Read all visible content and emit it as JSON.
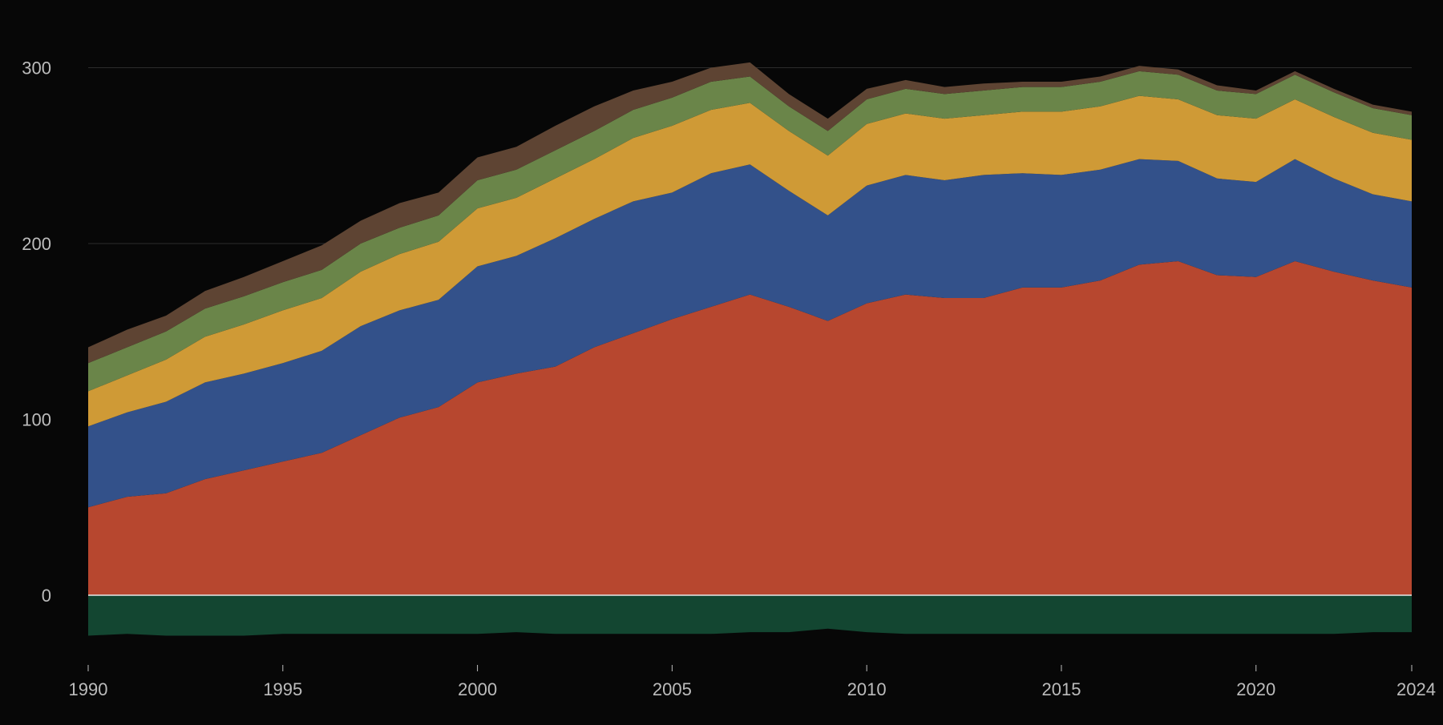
{
  "chart_data": {
    "type": "area",
    "stacked": true,
    "x": [
      1990,
      1991,
      1992,
      1993,
      1994,
      1995,
      1996,
      1997,
      1998,
      1999,
      2000,
      2001,
      2002,
      2003,
      2004,
      2005,
      2006,
      2007,
      2008,
      2009,
      2010,
      2011,
      2012,
      2013,
      2014,
      2015,
      2016,
      2017,
      2018,
      2019,
      2020,
      2021,
      2022,
      2023,
      2024
    ],
    "x_ticks": [
      "1990",
      "1995",
      "2000",
      "2005",
      "2010",
      "2015",
      "2020",
      "2024"
    ],
    "y_ticks": [
      "0",
      "100",
      "200",
      "300"
    ],
    "xlim": [
      1990,
      2024
    ],
    "ylim": [
      -25,
      310
    ],
    "grid": true,
    "legend": "none",
    "series": [
      {
        "color": "#b7472f",
        "values": [
          50,
          56,
          58,
          66,
          71,
          76,
          81,
          91,
          101,
          107,
          121,
          126,
          130,
          141,
          149,
          157,
          164,
          171,
          164,
          156,
          166,
          171,
          169,
          169,
          175,
          175,
          179,
          188,
          190,
          182,
          181,
          190,
          184,
          179,
          175
        ]
      },
      {
        "color": "#33518a",
        "values": [
          46,
          48,
          52,
          55,
          55,
          56,
          58,
          62,
          61,
          61,
          66,
          67,
          73,
          73,
          75,
          72,
          76,
          74,
          66,
          60,
          67,
          68,
          67,
          70,
          65,
          64,
          63,
          60,
          57,
          55,
          54,
          58,
          53,
          49,
          49
        ]
      },
      {
        "color": "#cf9a36",
        "values": [
          20,
          21,
          24,
          26,
          28,
          30,
          30,
          31,
          32,
          33,
          33,
          33,
          34,
          34,
          36,
          38,
          36,
          35,
          34,
          34,
          35,
          35,
          35,
          34,
          35,
          36,
          36,
          36,
          35,
          36,
          36,
          34,
          35,
          35,
          35
        ]
      },
      {
        "color": "#6a8549",
        "values": [
          16,
          16,
          16,
          16,
          16,
          16,
          16,
          16,
          15,
          15,
          16,
          16,
          16,
          16,
          16,
          16,
          16,
          15,
          14,
          14,
          14,
          14,
          14,
          14,
          14,
          14,
          14,
          14,
          14,
          14,
          14,
          14,
          14,
          14,
          14
        ]
      },
      {
        "color": "#5e4433",
        "values": [
          9,
          10,
          9,
          10,
          11,
          12,
          14,
          13,
          14,
          13,
          13,
          13,
          14,
          14,
          11,
          9,
          8,
          8,
          7,
          7,
          6,
          5,
          4,
          4,
          3,
          3,
          3,
          3,
          3,
          3,
          2,
          2,
          2,
          2,
          2
        ]
      },
      {
        "color": "#134631",
        "values": [
          -23,
          -22,
          -23,
          -23,
          -23,
          -22,
          -22,
          -22,
          -22,
          -22,
          -22,
          -21,
          -22,
          -22,
          -22,
          -22,
          -22,
          -21,
          -21,
          -19,
          -21,
          -22,
          -22,
          -22,
          -22,
          -22,
          -22,
          -22,
          -22,
          -22,
          -22,
          -22,
          -22,
          -21,
          -21
        ]
      }
    ]
  }
}
